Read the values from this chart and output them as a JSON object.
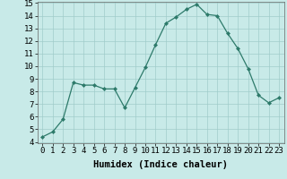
{
  "x": [
    0,
    1,
    2,
    3,
    4,
    5,
    6,
    7,
    8,
    9,
    10,
    11,
    12,
    13,
    14,
    15,
    16,
    17,
    18,
    19,
    20,
    21,
    22,
    23
  ],
  "y": [
    4.4,
    4.8,
    5.8,
    8.7,
    8.5,
    8.5,
    8.2,
    8.2,
    6.7,
    8.3,
    9.9,
    11.7,
    13.4,
    13.9,
    14.5,
    14.9,
    14.1,
    14.0,
    12.6,
    11.4,
    9.8,
    7.7,
    7.1,
    7.5
  ],
  "xlabel": "Humidex (Indice chaleur)",
  "ylim": [
    4,
    15
  ],
  "xlim": [
    -0.5,
    23.5
  ],
  "yticks": [
    4,
    5,
    6,
    7,
    8,
    9,
    10,
    11,
    12,
    13,
    14,
    15
  ],
  "xticks": [
    0,
    1,
    2,
    3,
    4,
    5,
    6,
    7,
    8,
    9,
    10,
    11,
    12,
    13,
    14,
    15,
    16,
    17,
    18,
    19,
    20,
    21,
    22,
    23
  ],
  "line_color": "#2d7a6a",
  "marker_color": "#2d7a6a",
  "bg_color": "#c8eae8",
  "grid_color": "#a0ccca",
  "xlabel_fontsize": 7.5,
  "tick_fontsize": 6.5
}
